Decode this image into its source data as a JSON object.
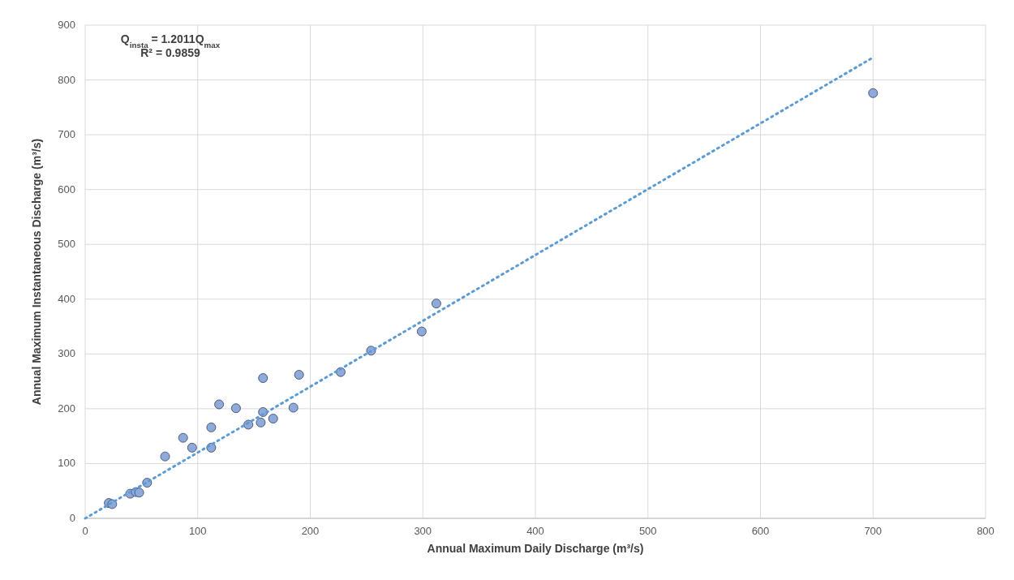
{
  "chart_data": {
    "type": "scatter",
    "xlabel": "Annual Maximum Daily Discharge (m³/s)",
    "ylabel": "Annual Maximum Instantaneous Discharge (m³/s)",
    "annotations": [
      "Q$_{insta}$ = 1.2011Q$_{max}$",
      "R² = 0.9859"
    ],
    "series": [
      {
        "color": "#8eaadb",
        "marker": "circle",
        "x": [
          21,
          24,
          40,
          45,
          48,
          55,
          71,
          87,
          95,
          112,
          112,
          119,
          134,
          145,
          156,
          158,
          158,
          167,
          185,
          190,
          227,
          254,
          299,
          312,
          700
        ],
        "values": [
          28,
          26,
          45,
          48,
          47,
          65,
          113,
          147,
          129,
          129,
          166,
          208,
          201,
          171,
          175,
          194,
          256,
          182,
          202,
          262,
          267,
          306,
          341,
          392,
          776
        ]
      },
      {
        "type": "line",
        "color": "#5b9bd5",
        "line_style": "dotted",
        "x": [
          0,
          700
        ],
        "values": [
          0,
          841
        ]
      }
    ],
    "xlim": [
      0,
      800
    ],
    "xticks": [
      0,
      100,
      200,
      300,
      400,
      500,
      600,
      700,
      800
    ],
    "ylim": [
      0,
      900
    ],
    "yticks": [
      0,
      100,
      200,
      300,
      400,
      500,
      600,
      700,
      800,
      900
    ],
    "grid": true
  }
}
